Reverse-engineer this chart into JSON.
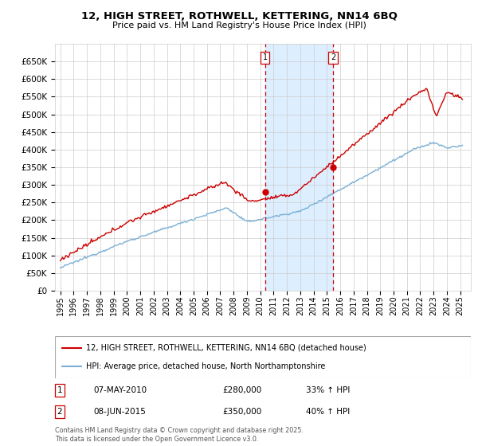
{
  "title": "12, HIGH STREET, ROTHWELL, KETTERING, NN14 6BQ",
  "subtitle": "Price paid vs. HM Land Registry's House Price Index (HPI)",
  "ytick_vals": [
    0,
    50000,
    100000,
    150000,
    200000,
    250000,
    300000,
    350000,
    400000,
    450000,
    500000,
    550000,
    600000,
    650000
  ],
  "vline1_x": 2010.37,
  "vline2_x": 2015.46,
  "sale1_date": "07-MAY-2010",
  "sale1_price": "£280,000",
  "sale1_hpi": "33% ↑ HPI",
  "sale1_price_val": 280000,
  "sale2_date": "08-JUN-2015",
  "sale2_price": "£350,000",
  "sale2_hpi": "40% ↑ HPI",
  "sale2_price_val": 350000,
  "legend_line1": "12, HIGH STREET, ROTHWELL, KETTERING, NN14 6BQ (detached house)",
  "legend_line2": "HPI: Average price, detached house, North Northamptonshire",
  "footer": "Contains HM Land Registry data © Crown copyright and database right 2025.\nThis data is licensed under the Open Government Licence v3.0.",
  "line1_color": "#cc0000",
  "line2_color": "#7bafd4",
  "shade_color": "#ddeeff",
  "vline_color": "#cc0000",
  "grid_color": "#cccccc",
  "xlim_left": 1994.6,
  "xlim_right": 2025.8,
  "ylim_top": 700000
}
